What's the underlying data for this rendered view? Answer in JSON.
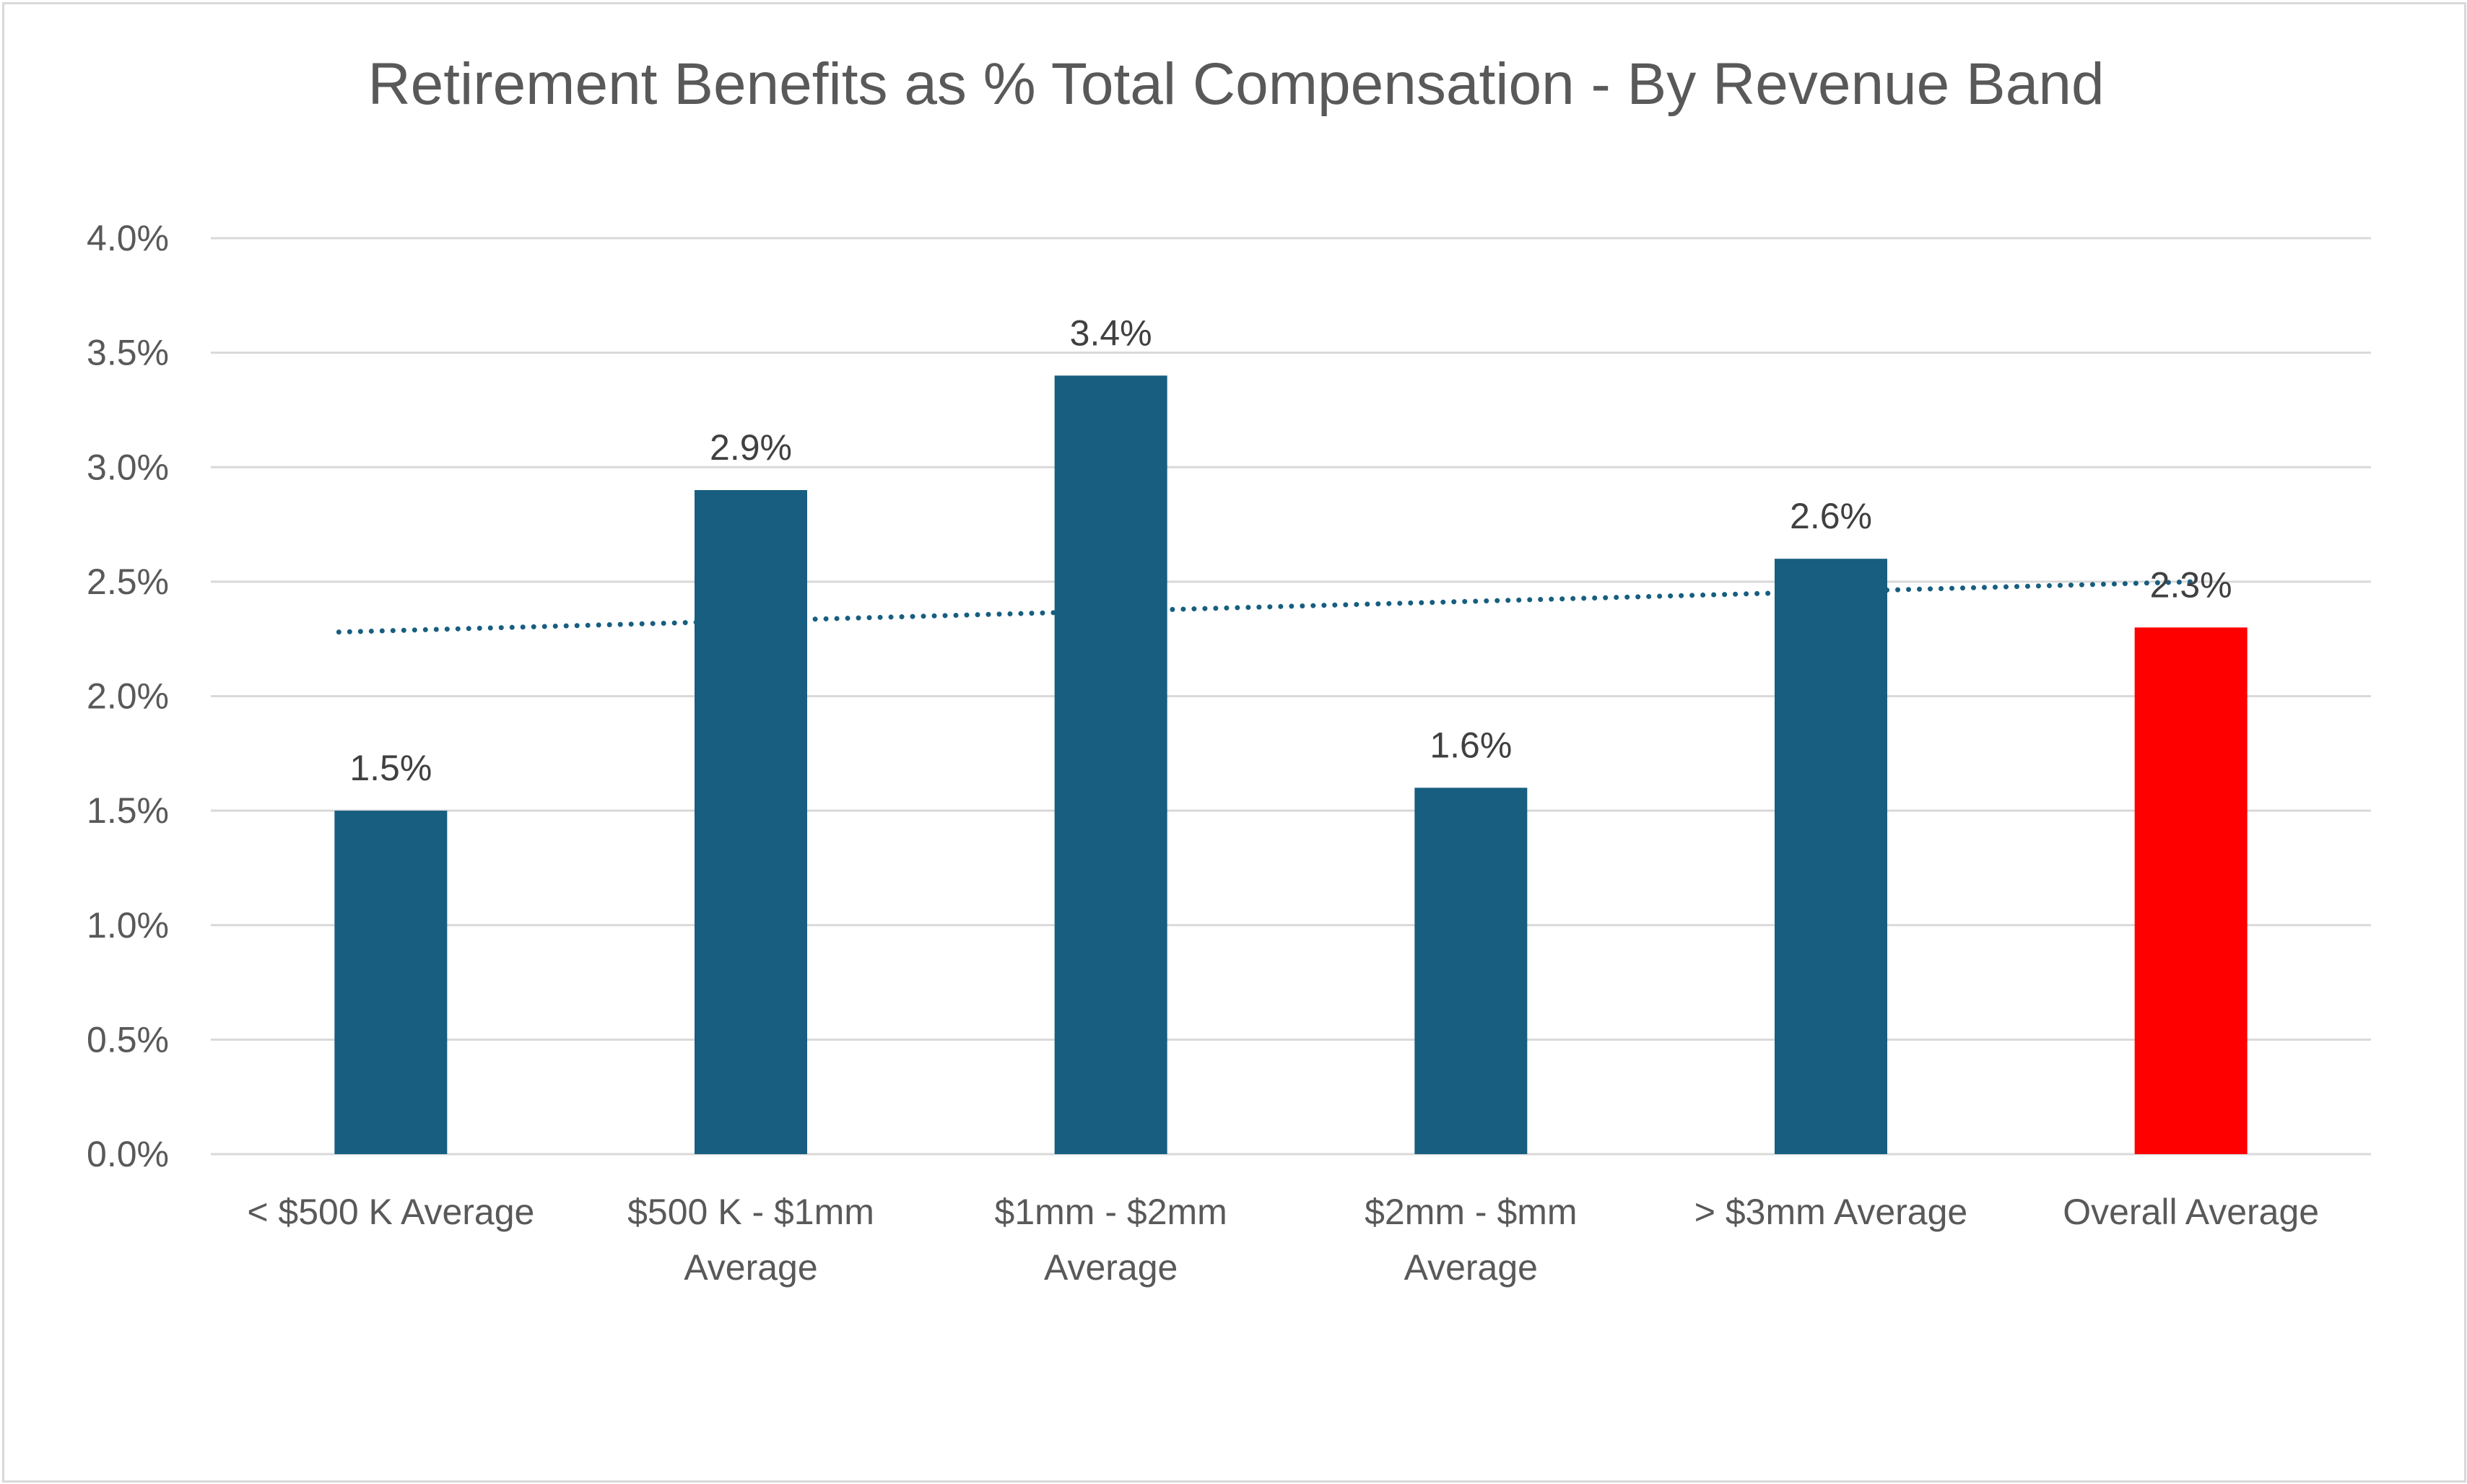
{
  "chart_data": {
    "type": "bar",
    "title": "Retirement Benefits as % Total Compensation - By Revenue Band",
    "categories": [
      [
        "< $500 K  Average"
      ],
      [
        "$500 K - $1mm",
        "Average"
      ],
      [
        "$1mm - $2mm",
        "Average"
      ],
      [
        "$2mm - $mm",
        "Average"
      ],
      [
        "> $3mm  Average"
      ],
      [
        "Overall Average"
      ]
    ],
    "values": [
      1.5,
      2.9,
      3.4,
      1.6,
      2.6,
      2.3
    ],
    "value_unit": "%",
    "data_labels": [
      "1.5%",
      "2.9%",
      "3.4%",
      "1.6%",
      "2.6%",
      "2.3%"
    ],
    "bar_colors": [
      "#175e80",
      "#175e80",
      "#175e80",
      "#175e80",
      "#175e80",
      "#ff0000"
    ],
    "ylim": [
      0,
      4
    ],
    "y_ticks": [
      "0.0%",
      "0.5%",
      "1.0%",
      "1.5%",
      "2.0%",
      "2.5%",
      "3.0%",
      "3.5%",
      "4.0%"
    ],
    "trendline": {
      "type": "linear",
      "style": "dotted",
      "color": "#175e80",
      "start_value": 2.28,
      "end_value": 2.5
    },
    "grid": true,
    "legend": "none",
    "xlabel": "",
    "ylabel": ""
  },
  "colors": {
    "text": "#595959",
    "label": "#404040",
    "grid": "#d9d9d9"
  }
}
